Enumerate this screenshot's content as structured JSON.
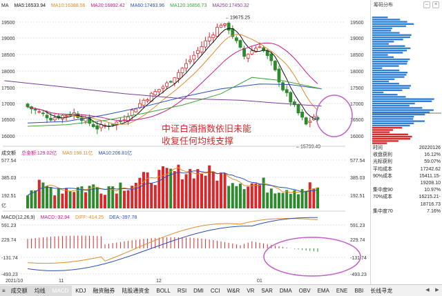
{
  "colors": {
    "up": "#d9272b",
    "down": "#2d8b2d",
    "ma5": "#111111",
    "ma10": "#e08a2a",
    "ma20": "#c7178b",
    "ma60": "#2a4dbf",
    "ma120": "#3aa33a",
    "ma250": "#7a3b9a",
    "grid": "#e2e2e2",
    "circle": "#c060c8"
  },
  "price_panel": {
    "label": "MA",
    "ma5": "MA5:16533.94",
    "ma10": "MA10:16388.56",
    "ma20": "MA20:16892.42",
    "ma60": "MA60:17493.96",
    "ma120": "MA120:16856.73",
    "ma250": "MA250:17450.32",
    "y_ticks": [
      "19500",
      "19000",
      "18500",
      "18000",
      "17500",
      "17000",
      "16500",
      "16000"
    ],
    "high_label": "19675.25",
    "low_label": "15799.49",
    "annotation_line1": "中证白酒指数依旧未能",
    "annotation_line2": "收复任何均线支撑"
  },
  "volume_panel": {
    "label": "成交额",
    "total": "总金额:129.02亿",
    "ma5": "MA5:198.11亿",
    "ma10": "MA10:206.81亿",
    "y_top": "577.54",
    "y_mid": "385.03",
    "y_low": "192.51",
    "unit": "亿"
  },
  "macd_panel": {
    "label": "MACD(12,26,9)",
    "macd": "MACD:-32.94",
    "diff": "DIFF:-414.25",
    "dea": "DEA:-397.78",
    "y_ticks": [
      "591.23",
      "229.74",
      "-131.74",
      "-493.23"
    ]
  },
  "x_axis": {
    "labels": [
      "2021/10",
      "11",
      "12",
      "01"
    ]
  },
  "chip_panel": {
    "title": "筹码分布",
    "rows": [
      {
        "k": "时间",
        "v": "20220126"
      },
      {
        "k": "收盘获利",
        "v": "16.12%"
      },
      {
        "k": "光标获利",
        "v": "59.07%"
      },
      {
        "k": "平均成本",
        "v": "17242.62"
      },
      {
        "k": "90%成本",
        "v": "15411.15-"
      },
      {
        "k": "",
        "v": "19208.10"
      },
      {
        "k": "集中度90",
        "v": "10.97%"
      },
      {
        "k": "70%成本",
        "v": "16215.21-"
      },
      {
        "k": "",
        "v": "18716.73"
      },
      {
        "k": "集中度70",
        "v": "7.16%"
      }
    ]
  },
  "tabs": [
    "成交额",
    "均线",
    "MACD",
    "KDJ",
    "融资融券",
    "陆股通资金",
    "BOLL",
    "RSI",
    "DMI",
    "CCI",
    "W&R",
    "VR",
    "SAR",
    "DMA",
    "OBV",
    "EMA",
    "ENE",
    "BBI",
    "长线寻龙"
  ]
}
